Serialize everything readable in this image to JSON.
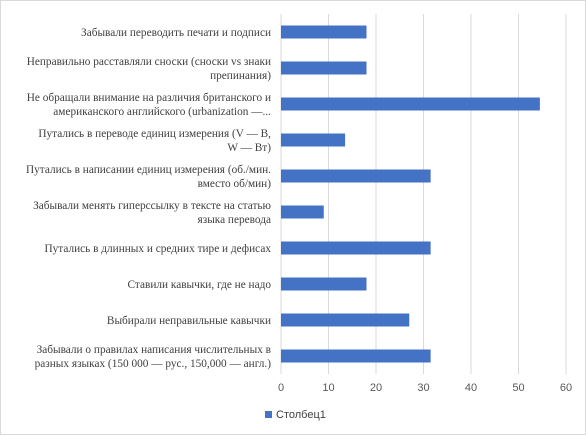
{
  "chart_data": {
    "type": "bar",
    "orientation": "horizontal",
    "categories": [
      [
        "Забывали переводить печати  и подписи"
      ],
      [
        "Неправильно расставляли сноски (сноски vs знаки",
        "препинания)"
      ],
      [
        "Не обращали внимание  на различия британского и",
        "американского английского  (urbanization —..."
      ],
      [
        "Путались в переводе единиц  измерения (V — В,",
        "W — Вт)"
      ],
      [
        "Путались в написании  единиц  измерения (об./мин.",
        "вместо об/мин)"
      ],
      [
        "Забывали менять гиперссылку в тексте на статью",
        "языка перевода"
      ],
      [
        "Путались в длинных  и средних  тире и дефисах"
      ],
      [
        "Ставили кавычки, где не надо"
      ],
      [
        "Выбирали неправильные кавычки"
      ],
      [
        "Забывали о правилах написания  числительных  в",
        "разных языках (150 000 — рус., 150,000 — англ.)"
      ]
    ],
    "series": [
      {
        "name": "Столбец1",
        "color": "#4472c4",
        "values": [
          18,
          18,
          54.5,
          13.5,
          31.5,
          9,
          31.5,
          18,
          27,
          31.5
        ]
      }
    ],
    "title": "",
    "xlabel": "",
    "ylabel": "",
    "xlim": [
      0,
      60
    ],
    "xticks": [
      0,
      10,
      20,
      30,
      40,
      50,
      60
    ],
    "grid": "vertical",
    "legend": "bottom"
  }
}
